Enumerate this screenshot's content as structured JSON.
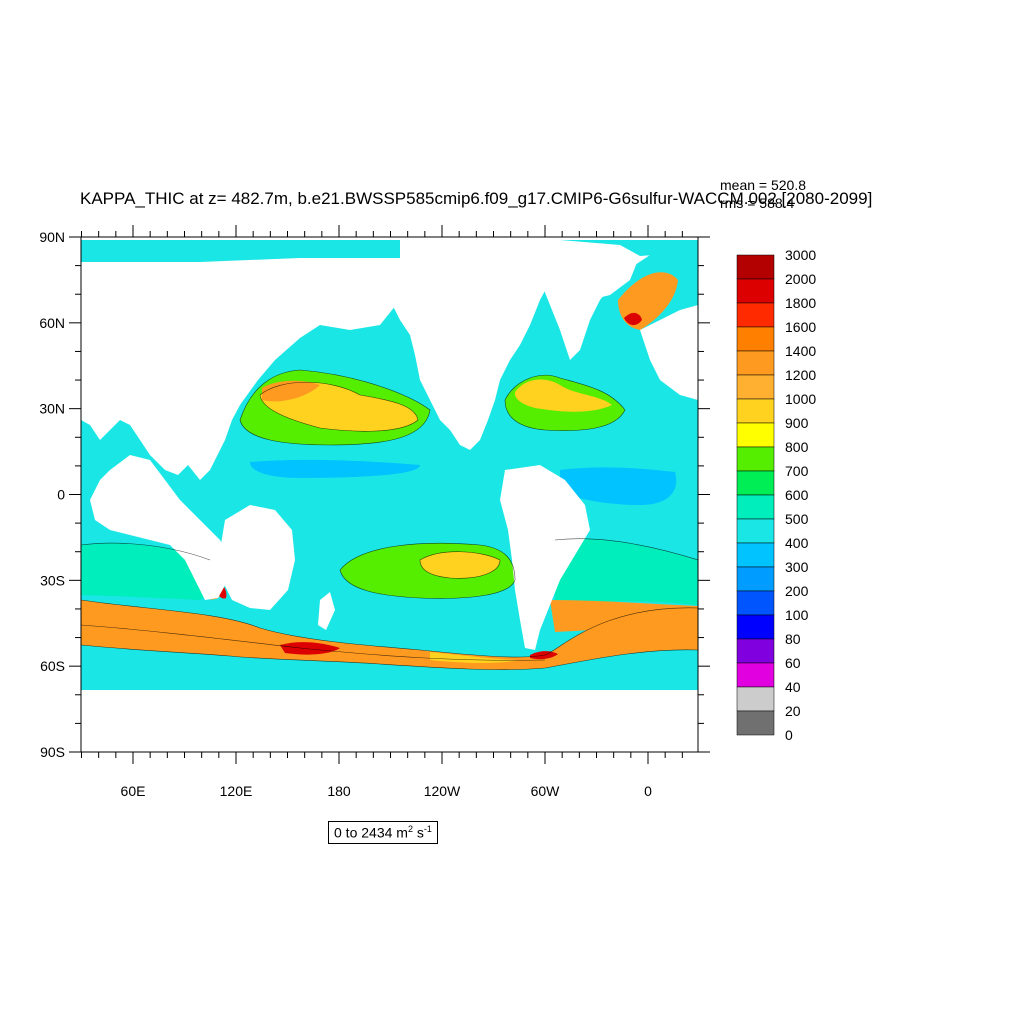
{
  "title": "KAPPA_THIC at z= 482.7m, b.e21.BWSSP585cmip6.f09_g17.CMIP6-G6sulfur-WACCM.002 [2080-2099]",
  "stats": {
    "mean": "mean = 520.8",
    "rms": "rms = 588.4"
  },
  "lat_ticks": [
    "90N",
    "60N",
    "30N",
    "0",
    "30S",
    "60S",
    "90S"
  ],
  "lon_ticks": [
    "60E",
    "120E",
    "180",
    "120W",
    "60W",
    "0"
  ],
  "colorbar": {
    "labels": [
      "3000",
      "2000",
      "1800",
      "1600",
      "1400",
      "1200",
      "1000",
      "900",
      "800",
      "700",
      "600",
      "500",
      "400",
      "300",
      "200",
      "100",
      "80",
      "60",
      "40",
      "20",
      "0"
    ],
    "colors": [
      "#b30000",
      "#dd0000",
      "#ff2a00",
      "#ff7f00",
      "#ff9a20",
      "#ffb030",
      "#ffd21f",
      "#ffff00",
      "#55ee00",
      "#00ee55",
      "#00eebb",
      "#1ae6e6",
      "#00c3ff",
      "#009cff",
      "#0055ff",
      "#0000ff",
      "#8000e0",
      "#e000e0",
      "#cccccc",
      "#707070"
    ]
  },
  "range": {
    "prefix": "0 to 2434 m",
    "unit1_exp": "2",
    "unit2": " s",
    "unit2_exp": "-1"
  },
  "ocean_colors": {
    "base": "#1ae6e6",
    "mid": "#00eebb",
    "green": "#55ee00",
    "yellow": "#ffd21f",
    "orange": "#ff9a20",
    "red": "#dd0000",
    "deep": "#00c3ff"
  }
}
